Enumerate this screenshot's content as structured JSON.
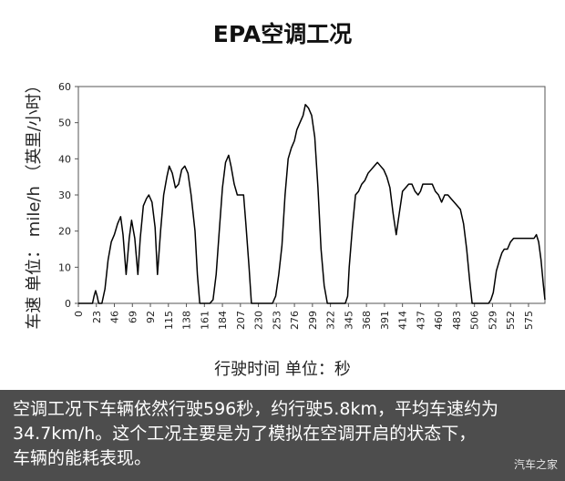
{
  "chart_data": {
    "type": "line",
    "title": "EPA空调工况",
    "xlabel": "行驶时间  单位：秒",
    "ylabel": "车速  单位：  mile/h （英里/小时）",
    "xlim": [
      0,
      596
    ],
    "ylim": [
      0,
      60
    ],
    "yticks": [
      0,
      10,
      20,
      30,
      40,
      50,
      60
    ],
    "xticks": [
      0,
      23,
      46,
      69,
      92,
      115,
      138,
      161,
      184,
      207,
      230,
      253,
      276,
      299,
      322,
      345,
      368,
      391,
      414,
      437,
      460,
      483,
      506,
      529,
      552,
      575
    ],
    "grid": false,
    "series": [
      {
        "x": [
          0,
          18,
          20,
          22,
          24,
          26,
          30,
          34,
          38,
          42,
          46,
          50,
          54,
          57,
          61,
          65,
          68,
          72,
          76,
          79,
          83,
          87,
          90,
          94,
          98,
          101,
          105,
          109,
          113,
          116,
          120,
          124,
          128,
          132,
          136,
          140,
          144,
          149,
          152,
          155,
          158,
          161,
          164,
          168,
          172,
          176,
          180,
          184,
          188,
          192,
          195,
          199,
          203,
          207,
          211,
          214,
          218,
          221,
          224,
          228,
          232,
          236,
          240,
          244,
          248,
          252,
          256,
          260,
          264,
          268,
          272,
          276,
          279,
          283,
          287,
          290,
          294,
          298,
          302,
          306,
          310,
          314,
          318,
          322,
          326,
          330,
          334,
          338,
          341,
          344,
          346,
          350,
          354,
          358,
          362,
          366,
          370,
          374,
          378,
          382,
          386,
          390,
          394,
          398,
          402,
          406,
          410,
          414,
          418,
          422,
          426,
          430,
          434,
          437,
          440,
          444,
          448,
          452,
          456,
          460,
          464,
          468,
          472,
          476,
          480,
          484,
          488,
          492,
          496,
          500,
          503,
          505,
          508,
          512,
          516,
          520,
          524,
          527,
          530,
          534,
          538,
          541,
          544,
          548,
          552,
          556,
          560,
          564,
          568,
          572,
          576,
          579,
          582,
          585,
          588,
          591,
          594,
          596
        ],
        "y": [
          0,
          0,
          2,
          3.5,
          2,
          0,
          0,
          4,
          12,
          17,
          19,
          22,
          24,
          19,
          8,
          18,
          23,
          18,
          8,
          18,
          27,
          29,
          30,
          28,
          21,
          8,
          20,
          30,
          35,
          38,
          36,
          32,
          33,
          37,
          38,
          36,
          30,
          20,
          8,
          0,
          0,
          0,
          0,
          0,
          1,
          8,
          20,
          32,
          39,
          41,
          38,
          33,
          30,
          30,
          30,
          22,
          10,
          0,
          0,
          0,
          0,
          0,
          0,
          0,
          0,
          2,
          8,
          16,
          30,
          40,
          43,
          45,
          48,
          50,
          52,
          55,
          54,
          52,
          46,
          32,
          15,
          5,
          0,
          0,
          0,
          0,
          0,
          0,
          0,
          2,
          10,
          21,
          30,
          31,
          33,
          34,
          36,
          37,
          38,
          39,
          38,
          37,
          35,
          32,
          25,
          19,
          25,
          31,
          32,
          33,
          33,
          31,
          30,
          31,
          33,
          33,
          33,
          33,
          31,
          30,
          28,
          30,
          30,
          29,
          28,
          27,
          26,
          22,
          15,
          6,
          0,
          0,
          0,
          0,
          0,
          0,
          0,
          1,
          3,
          9,
          12,
          14,
          15,
          15,
          17,
          18,
          18,
          18,
          18,
          18,
          18,
          18,
          18,
          19,
          17,
          12,
          5,
          1
        ]
      }
    ]
  },
  "caption": {
    "lines": [
      "空调工况下车辆依然行驶596秒，约行驶5.8km，平均车速约为",
      "34.7km/h。这个工况主要是为了模拟在空调开启的状态下，",
      "车辆的能耗表现。"
    ]
  },
  "watermark": "汽车之家",
  "colors": {
    "line": "#000000",
    "caption_bg": "#4d4d4d",
    "caption_text": "#ffffff"
  }
}
